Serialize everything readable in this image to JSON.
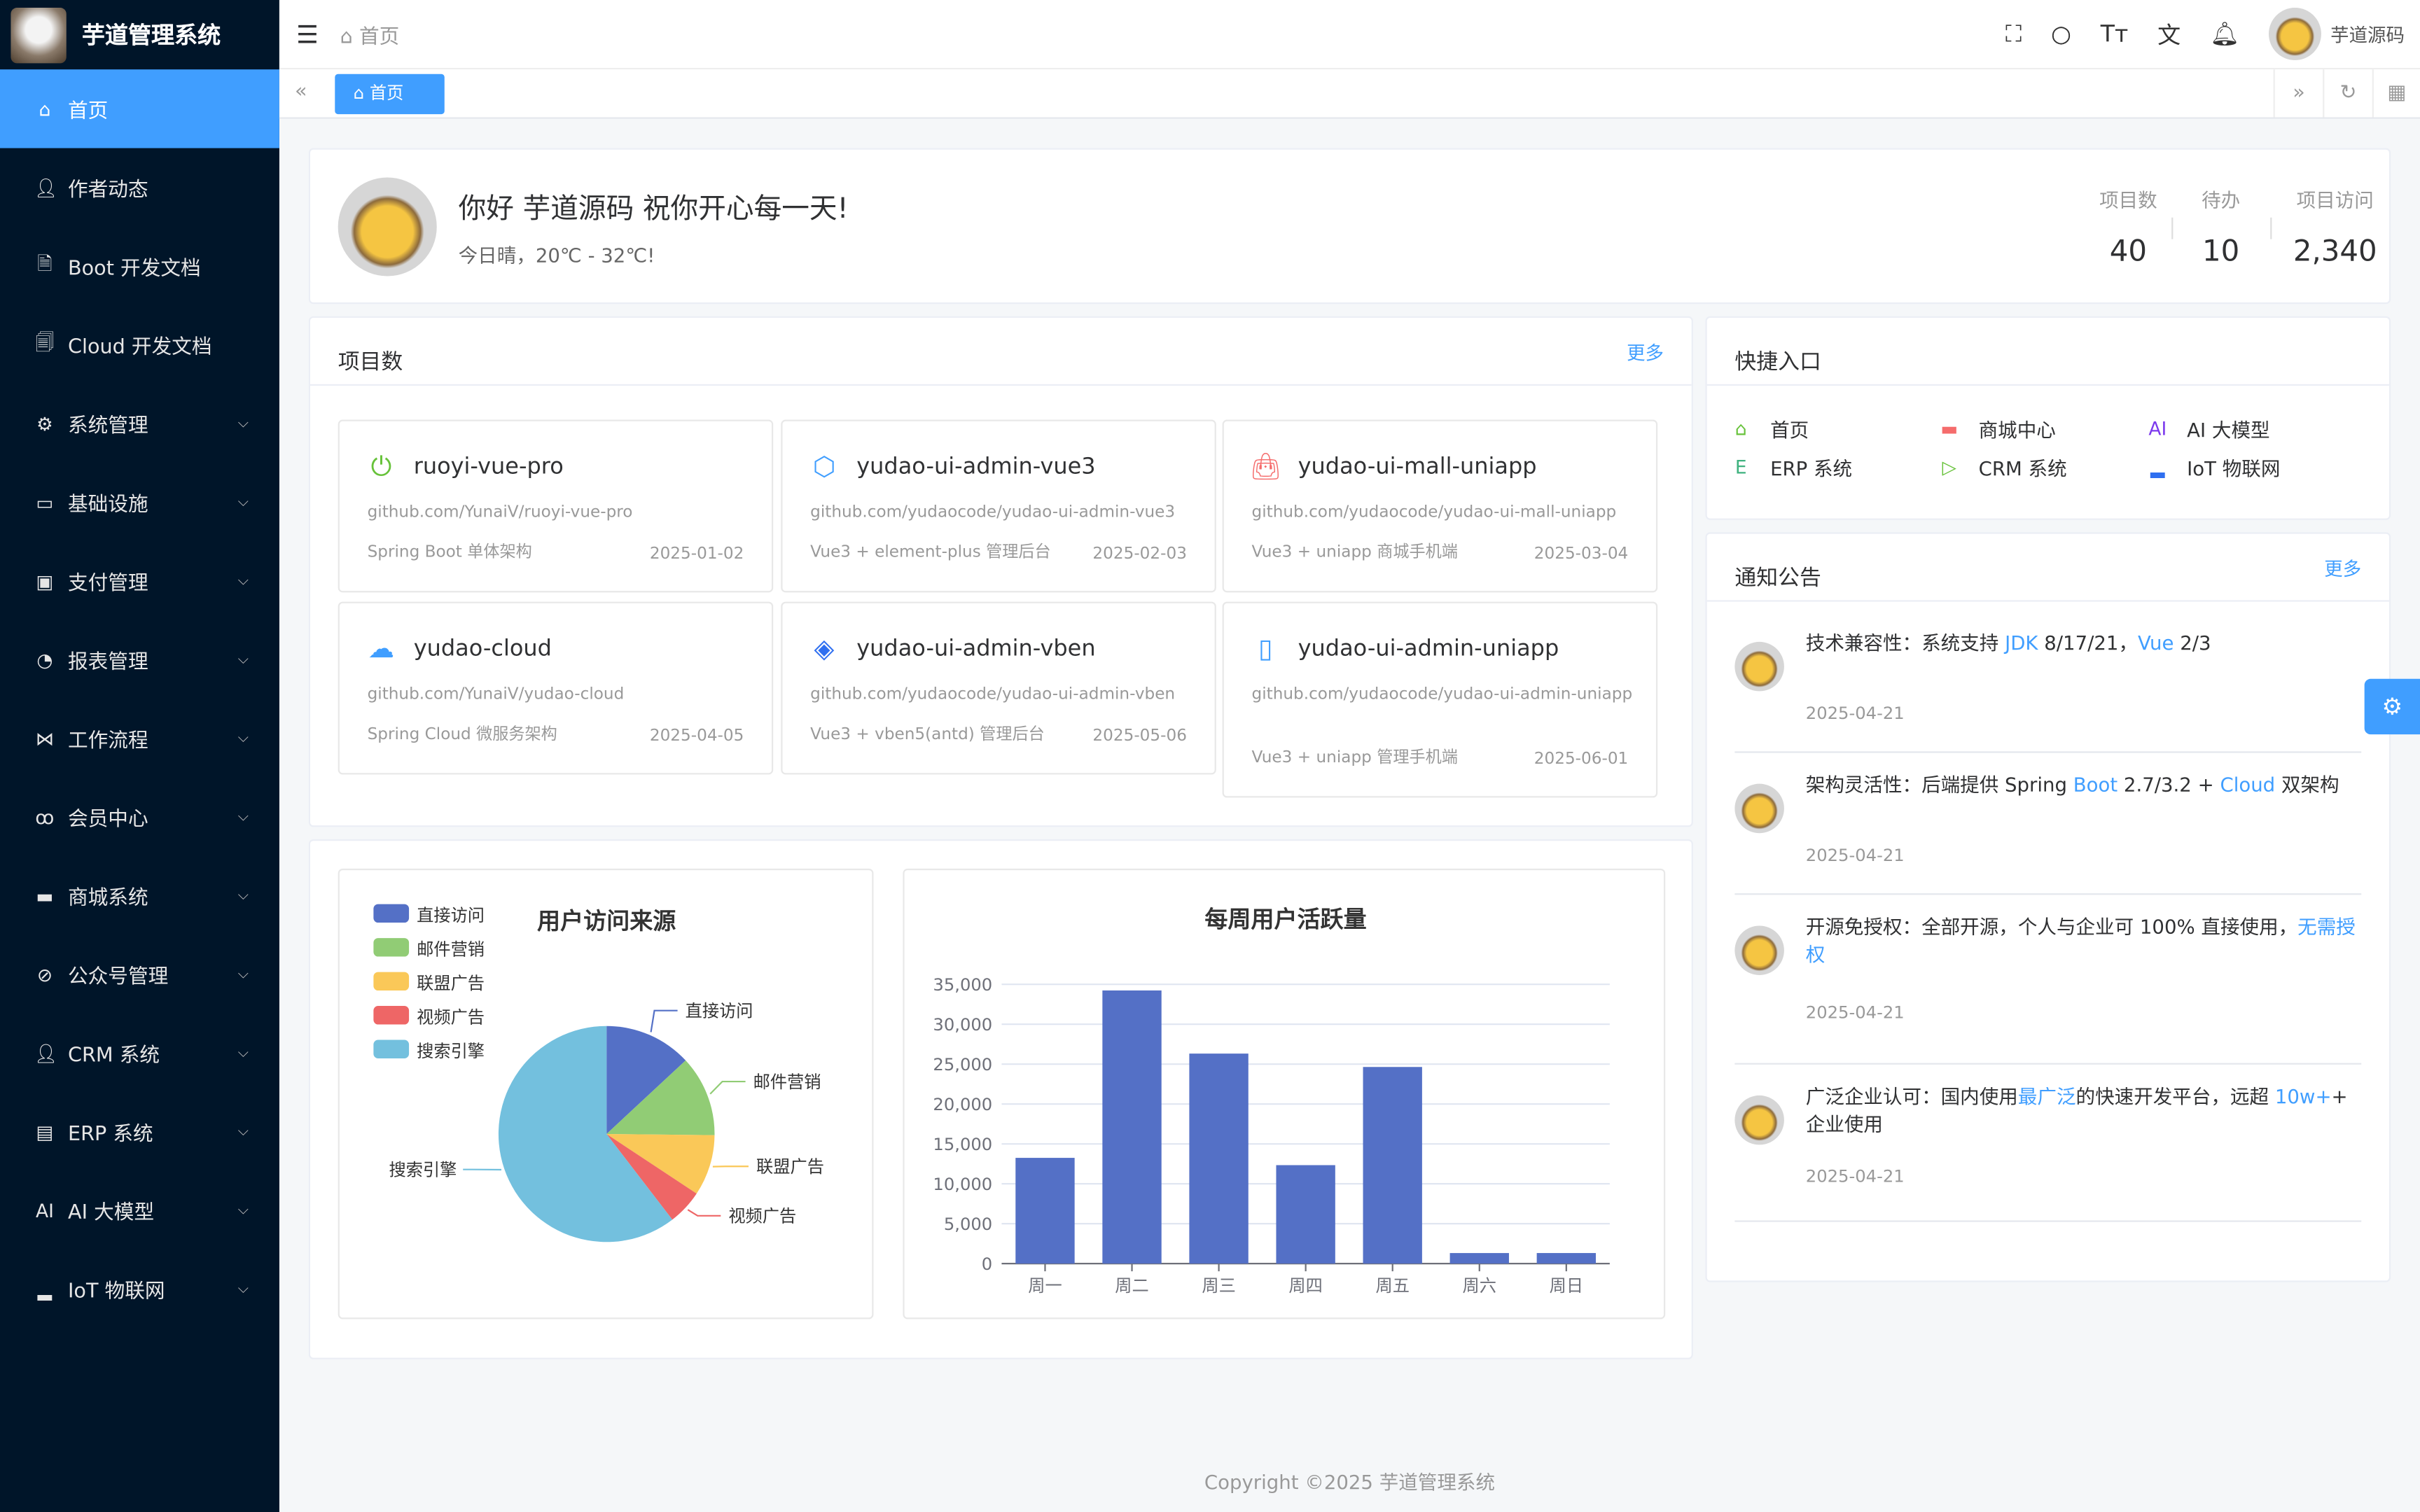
{
  "app": {
    "title": "芋道管理系统"
  },
  "sidebar": {
    "items": [
      {
        "label": "首页",
        "icon": "home-icon",
        "active": true
      },
      {
        "label": "作者动态",
        "icon": "user-icon"
      },
      {
        "label": "Boot 开发文档",
        "icon": "document-icon"
      },
      {
        "label": "Cloud 开发文档",
        "icon": "documents-icon"
      },
      {
        "label": "系统管理",
        "icon": "gear-icon",
        "expandable": true
      },
      {
        "label": "基础设施",
        "icon": "monitor-icon",
        "expandable": true
      },
      {
        "label": "支付管理",
        "icon": "payment-icon",
        "expandable": true
      },
      {
        "label": "报表管理",
        "icon": "pie-chart-icon",
        "expandable": true
      },
      {
        "label": "工作流程",
        "icon": "workflow-icon",
        "expandable": true
      },
      {
        "label": "会员中心",
        "icon": "bicycle-icon",
        "expandable": true
      },
      {
        "label": "商城系统",
        "icon": "shop-icon",
        "expandable": true
      },
      {
        "label": "公众号管理",
        "icon": "compass-icon",
        "expandable": true
      },
      {
        "label": "CRM 系统",
        "icon": "user-icon",
        "expandable": true
      },
      {
        "label": "ERP 系统",
        "icon": "store-icon",
        "expandable": true
      },
      {
        "label": "AI 大模型",
        "icon": "ai-icon",
        "expandable": true
      },
      {
        "label": "IoT 物联网",
        "icon": "car-icon",
        "expandable": true
      }
    ]
  },
  "header": {
    "breadcrumb": "首页",
    "username": "芋道源码"
  },
  "tags": {
    "active": "首页"
  },
  "welcome": {
    "greeting": "你好 芋道源码 祝你开心每一天!",
    "weather": "今日晴，20℃ - 32℃!",
    "stats": [
      {
        "label": "项目数",
        "value": "40"
      },
      {
        "label": "待办",
        "value": "10"
      },
      {
        "label": "项目访问",
        "value": "2,340"
      }
    ]
  },
  "projects": {
    "title": "项目数",
    "more": "更多",
    "items": [
      {
        "name": "ruoyi-vue-pro",
        "url": "github.com/YunaiV/ruoyi-vue-pro",
        "desc": "Spring Boot 单体架构",
        "date": "2025-01-02",
        "icon": "power-icon",
        "color": "#67c23a"
      },
      {
        "name": "yudao-ui-admin-vue3",
        "url": "github.com/yudaocode/yudao-ui-admin-vue3",
        "desc": "Vue3 + element-plus 管理后台",
        "date": "2025-02-03",
        "icon": "cube-icon",
        "color": "#409eff"
      },
      {
        "name": "yudao-ui-mall-uniapp",
        "url": "github.com/yudaocode/yudao-ui-mall-uniapp",
        "desc": "Vue3 + uniapp 商城手机端",
        "date": "2025-03-04",
        "icon": "shopping-bag-icon",
        "color": "#f56c6c"
      },
      {
        "name": "yudao-cloud",
        "url": "github.com/YunaiV/yudao-cloud",
        "desc": "Spring Cloud 微服务架构",
        "date": "2025-04-05",
        "icon": "cloud-icon",
        "color": "#409eff"
      },
      {
        "name": "yudao-ui-admin-vben",
        "url": "github.com/yudaocode/yudao-ui-admin-vben",
        "desc": "Vue3 + vben5(antd) 管理后台",
        "date": "2025-05-06",
        "icon": "diamond-icon",
        "color": "#2f6ff0"
      },
      {
        "name": "yudao-ui-admin-uniapp",
        "url": "github.com/yudaocode/yudao-ui-admin-uniapp",
        "desc": "Vue3 + uniapp 管理手机端",
        "date": "2025-06-01",
        "icon": "mobile-icon",
        "color": "#409eff"
      }
    ]
  },
  "quick": {
    "title": "快捷入口",
    "items": [
      {
        "label": "首页",
        "icon": "home-icon",
        "color": "#67c23a"
      },
      {
        "label": "商城中心",
        "icon": "shop-icon",
        "color": "#f56c6c"
      },
      {
        "label": "AI 大模型",
        "icon": "ai-icon",
        "color": "#7c3aed"
      },
      {
        "label": "ERP 系统",
        "icon": "erp-icon",
        "color": "#3fb27f"
      },
      {
        "label": "CRM 系统",
        "icon": "crm-icon",
        "color": "#67c23a"
      },
      {
        "label": "IoT 物联网",
        "icon": "car-icon",
        "color": "#2f6ff0"
      }
    ]
  },
  "notices": {
    "title": "通知公告",
    "more": "更多",
    "items": [
      {
        "parts": [
          "技术兼容性：系统支持 ",
          "JDK",
          " 8/17/21，",
          "Vue",
          " 2/3"
        ],
        "date": "2025-04-21"
      },
      {
        "parts": [
          "架构灵活性：后端提供 Spring ",
          "Boot",
          " 2.7/3.2 + ",
          "Cloud",
          " 双架构"
        ],
        "date": "2025-04-21"
      },
      {
        "parts": [
          "开源免授权：全部开源，个人与企业可 100% 直接使用，",
          "无需授权",
          "",
          "",
          ""
        ],
        "date": "2025-04-21"
      },
      {
        "parts": [
          "广泛企业认可：国内使用",
          "最广泛",
          "的快速开发平台，远超 ",
          "10w+",
          "+ 企业使用"
        ],
        "date": "2025-04-21"
      }
    ]
  },
  "footer": {
    "copyright": "Copyright ©2025 芋道管理系统"
  },
  "chart_data": [
    {
      "type": "pie",
      "title": "用户访问来源",
      "legend": "top-left",
      "categories": [
        "直接访问",
        "邮件营销",
        "联盟广告",
        "视频广告",
        "搜索引擎"
      ],
      "values": [
        335,
        310,
        234,
        135,
        1548
      ],
      "colors": [
        "#5470c6",
        "#91cc75",
        "#fac858",
        "#ee6666",
        "#73c0de"
      ]
    },
    {
      "type": "bar",
      "title": "每周用户活跃量",
      "categories": [
        "周一",
        "周二",
        "周三",
        "周四",
        "周五",
        "周六",
        "周日"
      ],
      "values": [
        13253,
        34235,
        26321,
        12340,
        24643,
        1322,
        1324
      ],
      "ylim": [
        0,
        35000
      ],
      "yticks": [
        "0",
        "5,000",
        "10,000",
        "15,000",
        "20,000",
        "25,000",
        "30,000",
        "35,000"
      ],
      "grid": true,
      "color": "#5470c6"
    }
  ]
}
